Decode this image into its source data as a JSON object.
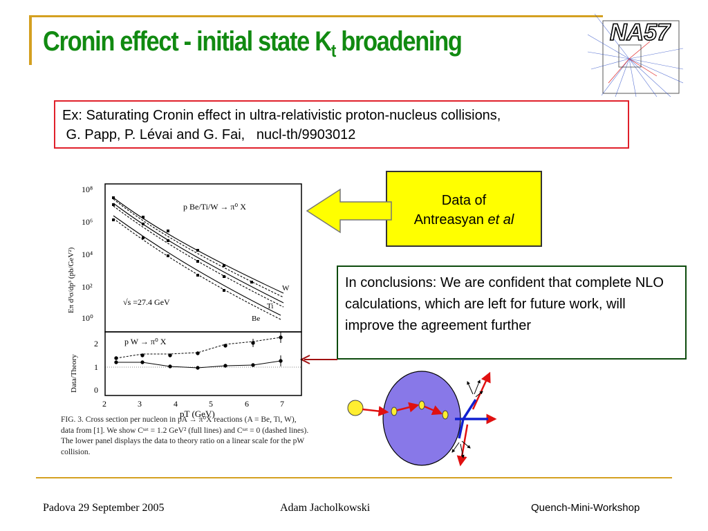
{
  "slide": {
    "title_main": "Cronin effect - initial state K",
    "title_sub": "t",
    "title_end": " broadening",
    "logo_text": "NA57"
  },
  "reference": {
    "line1": "Ex: Saturating Cronin effect in ultra-relativistic proton-nucleus collisions,",
    "line2": " G. Papp, P. Lévai and G. Fai,   nucl-th/9903012"
  },
  "callout": {
    "line1": "Data of",
    "line2_plain": "Antreasyan ",
    "line2_italic": "et al"
  },
  "conclusion": {
    "text": "In conclusions: We are confident that complete NLO calculations, which are left for future work, will improve the agreement further"
  },
  "figure": {
    "top_panel": {
      "ylabel": "Eπ d³σ/dp³ (pb/GeV²)",
      "y_ticks": [
        "10⁸",
        "10⁶",
        "10⁴",
        "10²",
        "10⁰"
      ],
      "process": "p Be/Ti/W → π⁰ X",
      "energy": "√s =27.4 GeV",
      "series_labels": [
        "W",
        "Ti",
        "Be"
      ]
    },
    "bottom_panel": {
      "ylabel": "Data/Theory",
      "y_ticks": [
        "2",
        "1",
        "0"
      ],
      "process": "p W → π⁰ X",
      "x_ticks": [
        "2",
        "3",
        "4",
        "5",
        "6",
        "7"
      ],
      "xlabel": "pT (GeV)"
    },
    "caption": "FIG. 3.   Cross section per nucleon in pA → π⁰X reactions (A = Be, Ti, W), data from [1]. We show Cˢᵃᵗ = 1.2 GeV² (full lines) and Cˢᵃᵗ = 0 (dashed lines). The lower panel displays the data to theory ratio on a linear scale for the pW collision."
  },
  "footer": {
    "left": "Padova 29 September 2005",
    "middle": "Adam Jacholkowski",
    "right": "Quench-Mini-Workshop"
  },
  "colors": {
    "title": "#118a11",
    "accent_rule": "#d4a020",
    "ref_border": "#e0202a",
    "callout_bg": "#ffff00",
    "conclusion_border": "#0c4a0c",
    "nucleus": "#8878e8"
  }
}
